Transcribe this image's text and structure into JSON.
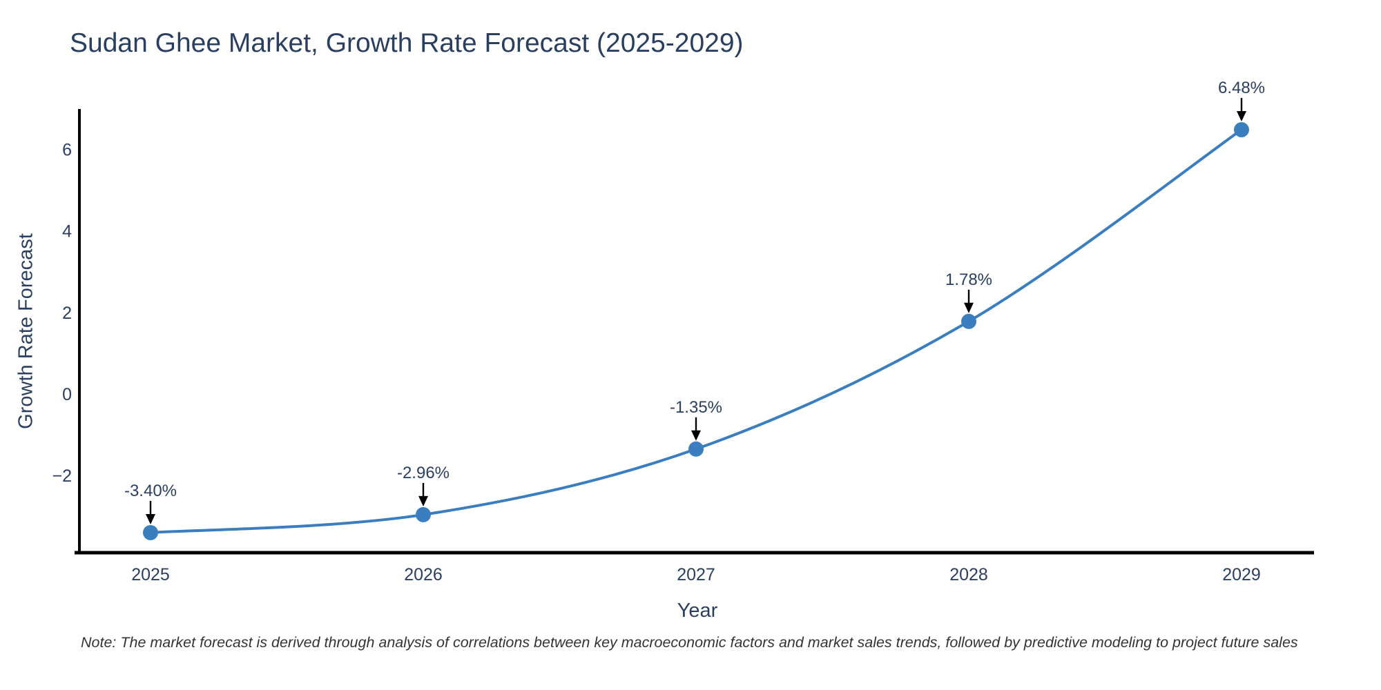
{
  "chart_data": {
    "type": "line",
    "title": "Sudan Ghee Market, Growth Rate Forecast (2025-2029)",
    "xlabel": "Year",
    "ylabel": "Growth Rate Forecast",
    "x": [
      2025,
      2026,
      2027,
      2028,
      2029
    ],
    "values": [
      -3.4,
      -2.96,
      -1.35,
      1.78,
      6.48
    ],
    "point_labels": [
      "-3.40%",
      "-2.96%",
      "-1.35%",
      "1.78%",
      "6.48%"
    ],
    "yticks": [
      -2,
      0,
      2,
      4,
      6
    ],
    "ytick_labels": [
      "−2",
      "0",
      "2",
      "4",
      "6"
    ],
    "ylim": [
      -3.9,
      7.0
    ],
    "grid": "off",
    "legend": "none",
    "line_color": "#3a7ebf",
    "marker_color": "#3a7ebf",
    "annotation_arrow_color": "#000000",
    "axis_color": "#000000",
    "text_color": "#2a3f5f"
  },
  "note": "Note: The market forecast is derived through analysis of correlations between key macroeconomic factors and market sales trends, followed by predictive modeling to project future sales"
}
